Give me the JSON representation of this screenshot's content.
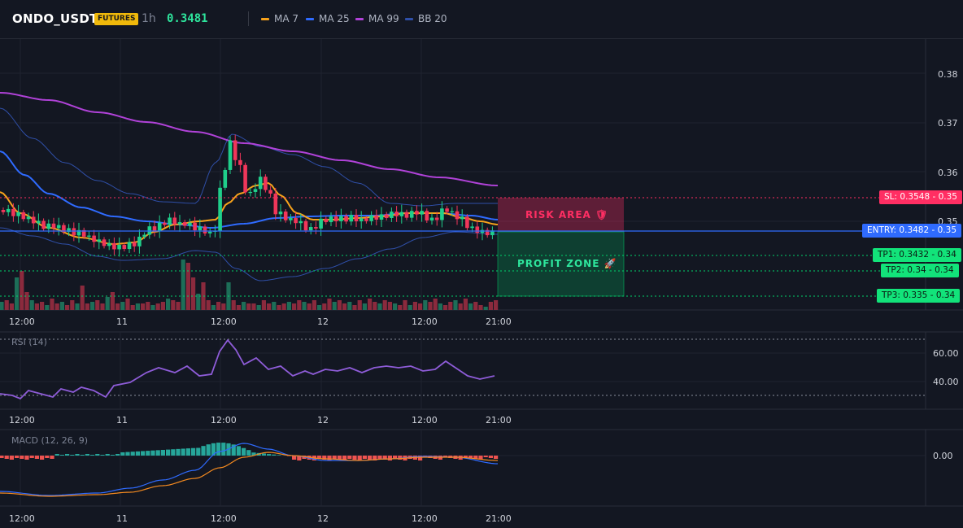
{
  "header": {
    "symbol": "ONDO_USDT",
    "market_badge": "FUTURES",
    "timeframe": "1h",
    "last_price": "0.3481",
    "indicators": [
      {
        "label": "MA 7",
        "color": "#f7a21b"
      },
      {
        "label": "MA 25",
        "color": "#2f6bff"
      },
      {
        "label": "MA 99",
        "color": "#b042d8"
      },
      {
        "label": "BB 20",
        "color": "#2f4fa8"
      }
    ]
  },
  "price_axis": {
    "ticks": [
      "0.38",
      "0.37",
      "0.36",
      "0.35",
      "0.35"
    ]
  },
  "time_axis": [
    "12:00",
    "11",
    "12:00",
    "12",
    "12:00",
    "21:00"
  ],
  "levels": {
    "sl": "SL: 0.3548 - 0.35",
    "entry": "ENTRY: 0.3482 - 0.35",
    "tp1": "TP1: 0.3432 - 0.34",
    "tp2": "TP2: 0.34 - 0.34",
    "tp3": "TP3: 0.335 - 0.34"
  },
  "zones": {
    "risk_label": "RISK AREA 🛡",
    "profit_label": "PROFIT ZONE 🚀"
  },
  "rsi": {
    "label": "RSI (14)",
    "ticks": [
      "60.00",
      "40.00"
    ]
  },
  "macd": {
    "label": "MACD (12, 26, 9)",
    "ticks": [
      "0.00"
    ]
  },
  "colors": {
    "up": "#1fcf8b",
    "down": "#f0365a",
    "background": "#131722",
    "sl": "#ff2e63",
    "entry": "#2f6bff",
    "tp": "#00d16a"
  }
}
